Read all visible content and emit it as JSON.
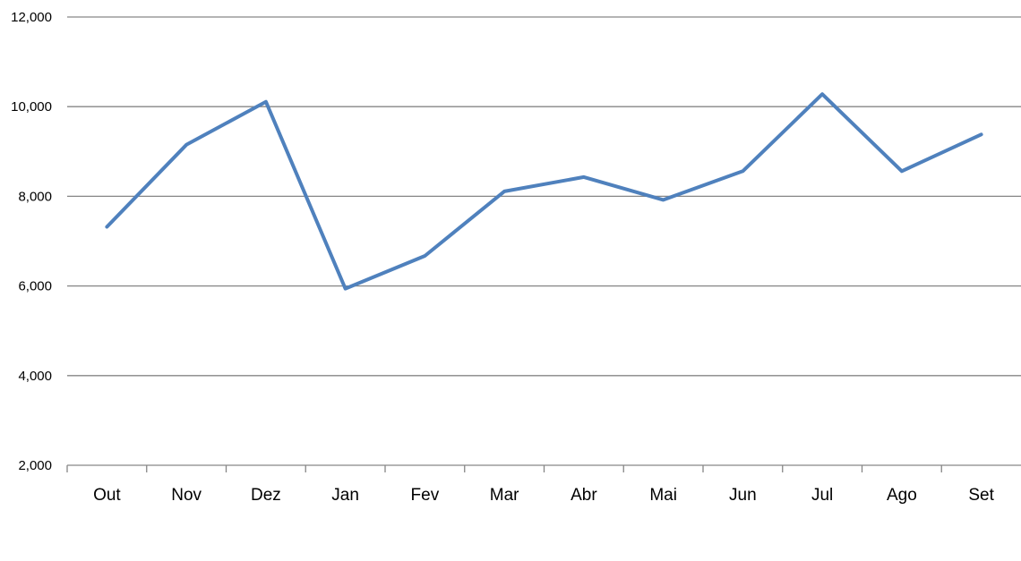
{
  "chart_data": {
    "type": "line",
    "title": "",
    "xlabel": "",
    "ylabel": "",
    "categories": [
      "Out",
      "Nov",
      "Dez",
      "Jan",
      "Fev",
      "Mar",
      "Abr",
      "Mai",
      "Jun",
      "Jul",
      "Ago",
      "Set"
    ],
    "series": [
      {
        "values": [
          7320,
          9150,
          10110,
          5940,
          6670,
          8110,
          8430,
          7920,
          8560,
          10280,
          8560,
          9380
        ],
        "color": "#4F81BD"
      }
    ],
    "ylim": [
      2000,
      12000
    ],
    "yticks": [
      2000,
      4000,
      6000,
      8000,
      10000,
      12000
    ],
    "ytick_labels": [
      "2,000",
      "4,000",
      "6,000",
      "8,000",
      "10,000",
      "12,000"
    ],
    "grid": true,
    "legend": "none"
  }
}
